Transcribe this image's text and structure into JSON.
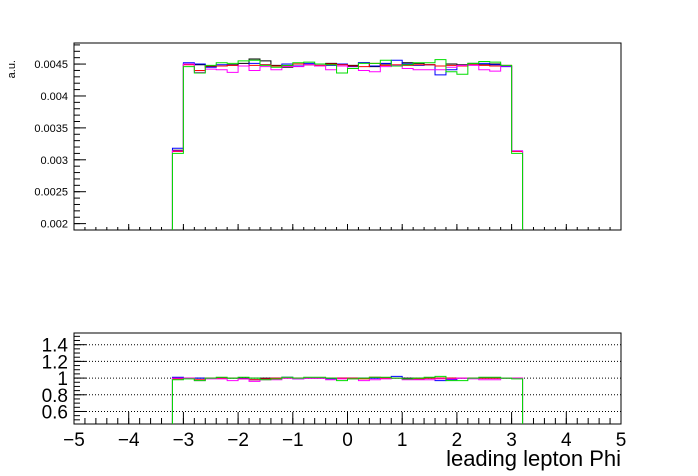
{
  "chart_data": [
    {
      "type": "line",
      "panel": "upper",
      "ylabel": "a.u.",
      "xlim": [
        -5,
        5
      ],
      "ylim": [
        0.0019,
        0.00483
      ],
      "ytick_labels": [
        "0.002",
        "0.0025",
        "0.003",
        "0.0035",
        "0.004",
        "0.0045"
      ],
      "ytick_values": [
        0.002,
        0.0025,
        0.003,
        0.0035,
        0.004,
        0.0045
      ],
      "bin_edges": [
        -3.2,
        -3.0,
        -2.8,
        -2.6,
        -2.4,
        -2.2,
        -2.0,
        -1.8,
        -1.6,
        -1.4,
        -1.2,
        -1.0,
        -0.8,
        -0.6,
        -0.4,
        -0.2,
        0.0,
        0.2,
        0.4,
        0.6,
        0.8,
        1.0,
        1.2,
        1.4,
        1.6,
        1.8,
        2.0,
        2.2,
        2.4,
        2.6,
        2.8,
        3.0,
        3.2
      ],
      "series": [
        {
          "color": "#000000",
          "values": [
            0.00315,
            0.0045,
            0.00449,
            0.00446,
            0.00447,
            0.00449,
            0.00451,
            0.00458,
            0.00455,
            0.00448,
            0.00445,
            0.0045,
            0.00449,
            0.00447,
            0.00451,
            0.0045,
            0.00448,
            0.00452,
            0.00446,
            0.0045,
            0.00447,
            0.00452,
            0.00451,
            0.00449,
            0.00447,
            0.0045,
            0.00449,
            0.00451,
            0.00449,
            0.0045,
            0.00447,
            0.00313
          ]
        },
        {
          "color": "#0000ff",
          "values": [
            0.00318,
            0.00452,
            0.0045,
            0.00445,
            0.00449,
            0.00448,
            0.00447,
            0.00451,
            0.00449,
            0.00447,
            0.0045,
            0.00447,
            0.00451,
            0.00448,
            0.00448,
            0.0045,
            0.00446,
            0.00452,
            0.00447,
            0.00451,
            0.00456,
            0.0045,
            0.00448,
            0.00449,
            0.00433,
            0.00441,
            0.00447,
            0.00449,
            0.00451,
            0.00449,
            0.00446,
            0.00314
          ]
        },
        {
          "color": "#ff0000",
          "values": [
            0.00313,
            0.00449,
            0.0044,
            0.00447,
            0.00447,
            0.00448,
            0.00447,
            0.00448,
            0.00449,
            0.00447,
            0.00447,
            0.0045,
            0.00449,
            0.00448,
            0.0045,
            0.00449,
            0.00447,
            0.00446,
            0.00451,
            0.00448,
            0.00449,
            0.00448,
            0.00449,
            0.00449,
            0.00447,
            0.00448,
            0.00447,
            0.00449,
            0.00448,
            0.00447,
            0.00448,
            0.00313
          ]
        },
        {
          "color": "#ff00ff",
          "values": [
            0.00314,
            0.0045,
            0.00437,
            0.00442,
            0.00441,
            0.00437,
            0.00447,
            0.0044,
            0.00446,
            0.00441,
            0.00446,
            0.00446,
            0.00449,
            0.00447,
            0.00441,
            0.00447,
            0.00443,
            0.0044,
            0.00438,
            0.00446,
            0.00448,
            0.00443,
            0.00441,
            0.00441,
            0.00441,
            0.00445,
            0.00448,
            0.00448,
            0.00441,
            0.00439,
            0.00447,
            0.00314
          ]
        },
        {
          "color": "#00dd00",
          "values": [
            0.0031,
            0.00446,
            0.00436,
            0.00448,
            0.00452,
            0.00451,
            0.00455,
            0.00456,
            0.00448,
            0.00445,
            0.00448,
            0.00452,
            0.00453,
            0.0045,
            0.00449,
            0.00436,
            0.00443,
            0.00451,
            0.00451,
            0.00456,
            0.00447,
            0.00449,
            0.00452,
            0.00452,
            0.00457,
            0.00438,
            0.00434,
            0.00451,
            0.00454,
            0.00453,
            0.00448,
            0.0031
          ]
        }
      ]
    },
    {
      "type": "line",
      "panel": "ratio",
      "xlabel": "leading lepton Phi",
      "xlim": [
        -5,
        5
      ],
      "ylim": [
        0.45,
        1.54
      ],
      "xtick_values": [
        -5,
        -4,
        -3,
        -2,
        -1,
        0,
        1,
        2,
        3,
        4,
        5
      ],
      "xtick_labels": [
        "−5",
        "−4",
        "−3",
        "−2",
        "−1",
        "0",
        "1",
        "2",
        "3",
        "4",
        "5"
      ],
      "ytick_values": [
        0.6,
        0.8,
        1,
        1.2,
        1.4
      ],
      "ytick_labels": [
        "0.6",
        "0.8",
        "1",
        "1.2",
        "1.4"
      ],
      "grid": true,
      "bin_edges": [
        -3.2,
        -3.0,
        -2.8,
        -2.6,
        -2.4,
        -2.2,
        -2.0,
        -1.8,
        -1.6,
        -1.4,
        -1.2,
        -1.0,
        -0.8,
        -0.6,
        -0.4,
        -0.2,
        0.0,
        0.2,
        0.4,
        0.6,
        0.8,
        1.0,
        1.2,
        1.4,
        1.6,
        1.8,
        2.0,
        2.2,
        2.4,
        2.6,
        2.8,
        3.0,
        3.2
      ],
      "series": [
        {
          "color": "#000000",
          "values": [
            1.0,
            1.0,
            1.0,
            1.0,
            1.0,
            1.0,
            1.0,
            1.0,
            1.0,
            1.0,
            1.0,
            1.0,
            1.0,
            1.0,
            1.0,
            1.0,
            1.0,
            1.0,
            1.0,
            1.0,
            1.0,
            1.0,
            1.0,
            1.0,
            1.0,
            1.0,
            1.0,
            1.0,
            1.0,
            1.0,
            1.0,
            1.0
          ]
        },
        {
          "color": "#0000ff",
          "values": [
            1.01,
            1.0,
            1.0,
            1.0,
            1.0,
            1.0,
            0.99,
            0.98,
            0.99,
            1.0,
            1.01,
            0.99,
            1.0,
            1.0,
            0.99,
            1.0,
            1.0,
            1.0,
            1.0,
            1.0,
            1.02,
            0.99,
            0.99,
            1.0,
            0.97,
            0.98,
            1.0,
            1.0,
            1.0,
            1.0,
            1.0,
            1.0
          ]
        },
        {
          "color": "#ff0000",
          "values": [
            0.99,
            1.0,
            0.98,
            1.0,
            1.0,
            1.0,
            0.99,
            0.98,
            0.99,
            1.0,
            1.0,
            1.0,
            1.0,
            1.0,
            1.0,
            1.0,
            1.0,
            0.99,
            1.01,
            1.0,
            1.0,
            0.99,
            0.99,
            1.0,
            1.0,
            1.0,
            1.0,
            1.0,
            1.0,
            1.0,
            1.0,
            1.0
          ]
        },
        {
          "color": "#ff00ff",
          "values": [
            1.0,
            1.0,
            0.97,
            0.99,
            0.99,
            0.97,
            0.99,
            0.96,
            0.98,
            0.98,
            1.0,
            0.99,
            1.0,
            1.0,
            0.98,
            0.99,
            0.99,
            0.97,
            0.98,
            0.99,
            1.0,
            0.98,
            0.98,
            0.98,
            0.99,
            0.99,
            1.0,
            0.99,
            0.98,
            0.98,
            1.0,
            1.0
          ]
        },
        {
          "color": "#00dd00",
          "values": [
            0.98,
            0.99,
            0.97,
            1.0,
            1.01,
            1.0,
            1.01,
            1.0,
            0.98,
            0.99,
            1.01,
            1.0,
            1.01,
            1.01,
            1.0,
            0.97,
            0.99,
            1.0,
            1.01,
            1.01,
            1.0,
            0.99,
            1.0,
            1.01,
            1.02,
            0.97,
            0.97,
            1.0,
            1.01,
            1.01,
            1.0,
            0.99
          ]
        }
      ]
    }
  ]
}
